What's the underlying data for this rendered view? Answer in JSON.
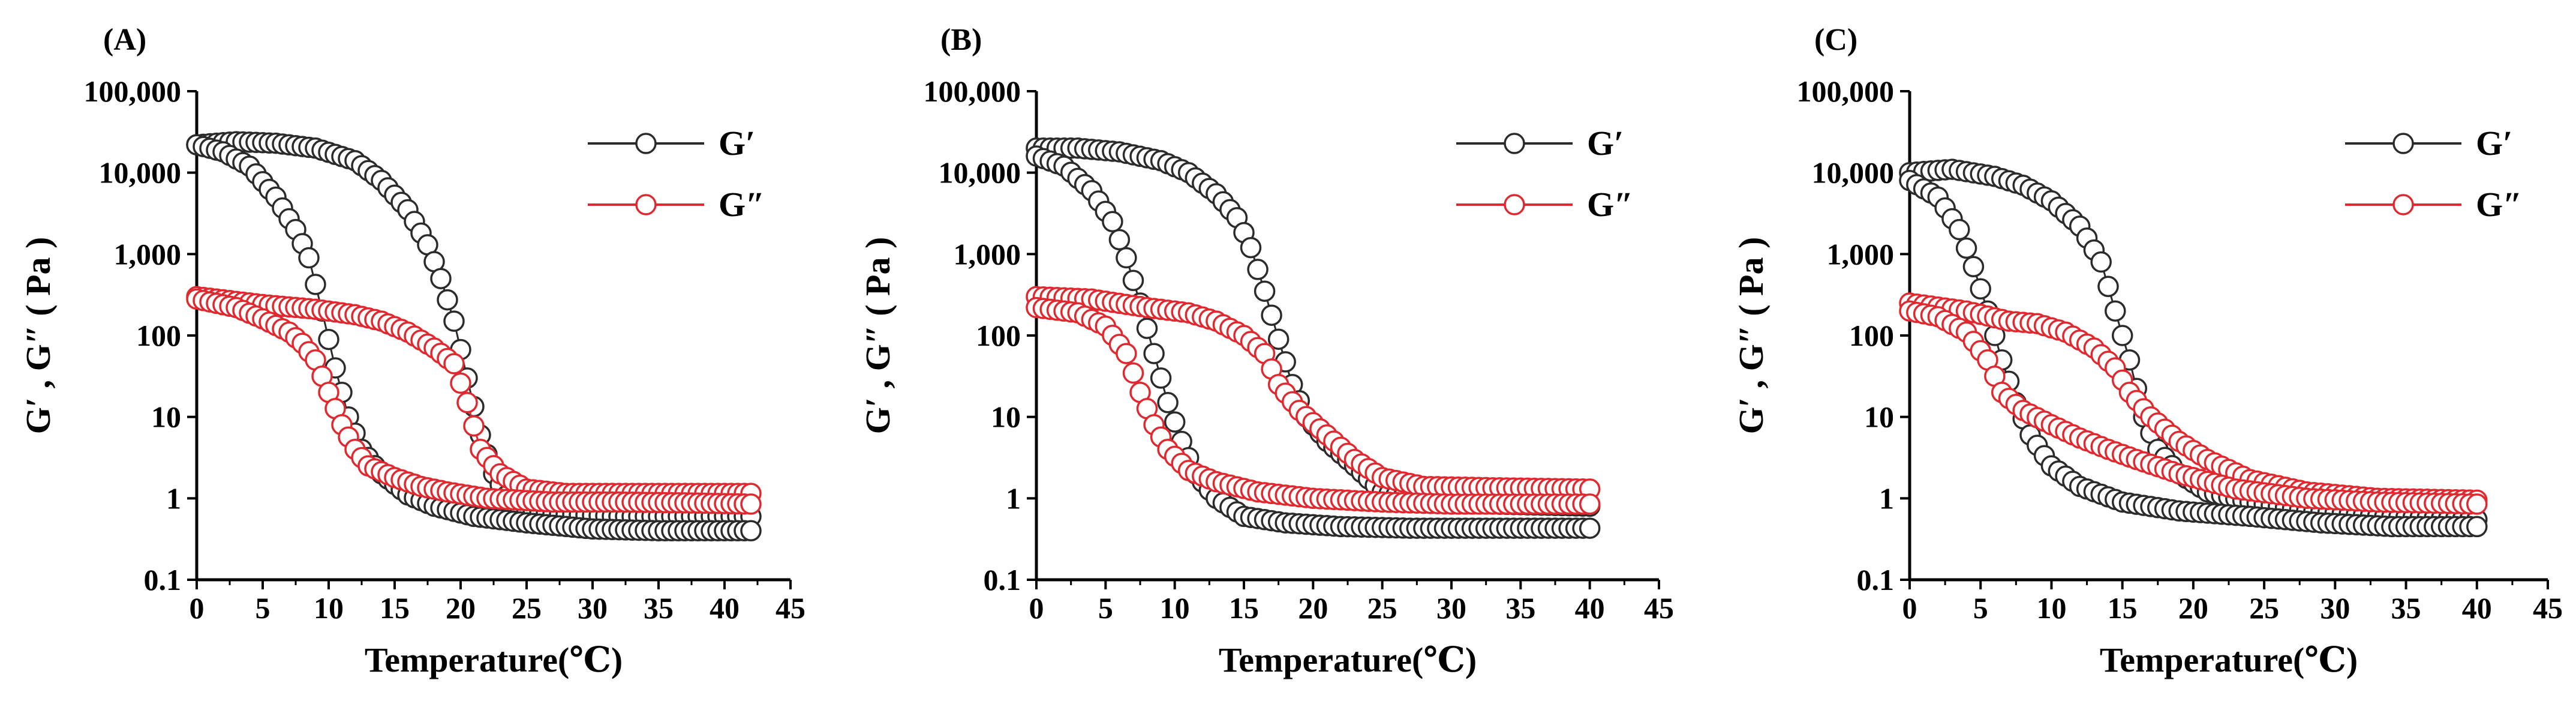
{
  "colors": {
    "gprime": "#2b2b2b",
    "gdouble": "#e0282f",
    "axis": "#000000"
  },
  "chart_data": [
    {
      "panel": "(A)",
      "type": "scatter",
      "yscale": "log",
      "xlabel": "Temperature(℃)",
      "ylabel": "G′ ,  G″ ( Pa )",
      "xlim": [
        0,
        45
      ],
      "ylim": [
        0.1,
        100000
      ],
      "xticks": [
        0,
        5,
        10,
        15,
        20,
        25,
        30,
        35,
        40,
        45
      ],
      "xtick_labels": [
        "0",
        "5",
        "10",
        "15",
        "20",
        "25",
        "30",
        "35",
        "40",
        "45"
      ],
      "yticks": [
        0.1,
        1,
        10,
        100,
        1000,
        10000,
        100000
      ],
      "ytick_labels": [
        "0.1",
        "1",
        "10",
        "100",
        "1,000",
        "10,000",
        "100,000"
      ],
      "legend": {
        "position": "top-right",
        "entries": [
          "G′",
          "G″"
        ]
      },
      "series": [
        {
          "name": "G′",
          "color": "#2b2b2b",
          "heating_x_range": [
            0,
            42
          ],
          "heating_points": [
            [
              0,
              22000
            ],
            [
              3,
              24000
            ],
            [
              6,
              23000
            ],
            [
              9,
              20000
            ],
            [
              12,
              14000
            ],
            [
              14,
              8000
            ],
            [
              16,
              3500
            ],
            [
              17.5,
              1300
            ],
            [
              18.5,
              500
            ],
            [
              19.5,
              150
            ],
            [
              20.5,
              30
            ],
            [
              21.5,
              6
            ],
            [
              22.5,
              2
            ],
            [
              24,
              0.8
            ],
            [
              27,
              0.65
            ],
            [
              32,
              0.6
            ],
            [
              37,
              0.6
            ],
            [
              42,
              0.6
            ]
          ],
          "cooling_x_range": [
            0,
            42
          ],
          "cooling_points": [
            [
              0,
              22000
            ],
            [
              2,
              18000
            ],
            [
              4,
              12000
            ],
            [
              6,
              5000
            ],
            [
              7.5,
              2000
            ],
            [
              8.5,
              900
            ],
            [
              9.5,
              200
            ],
            [
              10.5,
              40
            ],
            [
              11.5,
              10
            ],
            [
              12.5,
              4
            ],
            [
              14,
              2
            ],
            [
              16,
              1.1
            ],
            [
              18,
              0.8
            ],
            [
              21,
              0.6
            ],
            [
              25,
              0.5
            ],
            [
              30,
              0.42
            ],
            [
              35,
              0.4
            ],
            [
              42,
              0.4
            ]
          ]
        },
        {
          "name": "G″",
          "color": "#e0282f",
          "heating_x_range": [
            0,
            42
          ],
          "heating_points": [
            [
              0,
              300
            ],
            [
              5,
              240
            ],
            [
              9,
              210
            ],
            [
              12,
              180
            ],
            [
              14,
              150
            ],
            [
              16,
              110
            ],
            [
              18,
              70
            ],
            [
              19.5,
              45
            ],
            [
              20.5,
              15
            ],
            [
              21.5,
              4
            ],
            [
              23,
              2
            ],
            [
              25,
              1.3
            ],
            [
              28,
              1.15
            ],
            [
              33,
              1.15
            ],
            [
              38,
              1.15
            ],
            [
              42,
              1.15
            ]
          ],
          "cooling_x_range": [
            0,
            42
          ],
          "cooling_points": [
            [
              0,
              280
            ],
            [
              3,
              220
            ],
            [
              5,
              160
            ],
            [
              7,
              110
            ],
            [
              8,
              80
            ],
            [
              9,
              50
            ],
            [
              10,
              20
            ],
            [
              11,
              8
            ],
            [
              12,
              4
            ],
            [
              13,
              2.5
            ],
            [
              15,
              1.8
            ],
            [
              17,
              1.4
            ],
            [
              19,
              1.2
            ],
            [
              22,
              1.0
            ],
            [
              27,
              0.9
            ],
            [
              32,
              0.9
            ],
            [
              37,
              0.88
            ],
            [
              42,
              0.85
            ]
          ]
        }
      ]
    },
    {
      "panel": "(B)",
      "type": "scatter",
      "yscale": "log",
      "xlabel": "Temperature(℃)",
      "ylabel": "G′ ,  G″ ( Pa )",
      "xlim": [
        0,
        45
      ],
      "ylim": [
        0.1,
        100000
      ],
      "xticks": [
        0,
        5,
        10,
        15,
        20,
        25,
        30,
        35,
        40,
        45
      ],
      "xtick_labels": [
        "0",
        "5",
        "10",
        "15",
        "20",
        "25",
        "30",
        "35",
        "40",
        "45"
      ],
      "yticks": [
        0.1,
        1,
        10,
        100,
        1000,
        10000,
        100000
      ],
      "ytick_labels": [
        "0.1",
        "1",
        "10",
        "100",
        "1,000",
        "10,000",
        "100,000"
      ],
      "legend": {
        "position": "top-right",
        "entries": [
          "G′",
          "G″"
        ]
      },
      "series": [
        {
          "name": "G′",
          "color": "#2b2b2b",
          "heating_x_range": [
            0,
            40
          ],
          "heating_points": [
            [
              0,
              20000
            ],
            [
              3,
              20000
            ],
            [
              6,
              18000
            ],
            [
              9,
              14000
            ],
            [
              11,
              10000
            ],
            [
              13,
              5500
            ],
            [
              14.5,
              2800
            ],
            [
              15.5,
              1200
            ],
            [
              16.5,
              350
            ],
            [
              17.5,
              90
            ],
            [
              18.5,
              25
            ],
            [
              19.5,
              10
            ],
            [
              21,
              5
            ],
            [
              23,
              2.5
            ],
            [
              25,
              1.2
            ],
            [
              28,
              0.9
            ],
            [
              33,
              0.85
            ],
            [
              40,
              0.8
            ]
          ],
          "cooling_x_range": [
            0,
            40
          ],
          "cooling_points": [
            [
              0,
              16000
            ],
            [
              2,
              12000
            ],
            [
              4,
              6000
            ],
            [
              5.5,
              2500
            ],
            [
              6.5,
              900
            ],
            [
              7.5,
              250
            ],
            [
              8.5,
              60
            ],
            [
              9.5,
              15
            ],
            [
              10.5,
              5
            ],
            [
              11.5,
              2
            ],
            [
              13,
              1
            ],
            [
              15,
              0.6
            ],
            [
              18,
              0.5
            ],
            [
              22,
              0.45
            ],
            [
              27,
              0.43
            ],
            [
              33,
              0.43
            ],
            [
              40,
              0.43
            ]
          ]
        },
        {
          "name": "G″",
          "color": "#e0282f",
          "heating_x_range": [
            0,
            40
          ],
          "heating_points": [
            [
              0,
              300
            ],
            [
              4,
              280
            ],
            [
              8,
              220
            ],
            [
              11,
              190
            ],
            [
              13,
              150
            ],
            [
              15,
              100
            ],
            [
              16.5,
              60
            ],
            [
              17.5,
              25
            ],
            [
              19,
              12
            ],
            [
              21,
              6
            ],
            [
              23,
              3
            ],
            [
              25,
              1.8
            ],
            [
              28,
              1.4
            ],
            [
              33,
              1.35
            ],
            [
              40,
              1.3
            ]
          ],
          "cooling_x_range": [
            0,
            40
          ],
          "cooling_points": [
            [
              0,
              220
            ],
            [
              3,
              190
            ],
            [
              5,
              130
            ],
            [
              6.5,
              60
            ],
            [
              7.5,
              20
            ],
            [
              8.5,
              8
            ],
            [
              9.5,
              4
            ],
            [
              11,
              2.2
            ],
            [
              13,
              1.6
            ],
            [
              16,
              1.2
            ],
            [
              20,
              1.0
            ],
            [
              25,
              0.9
            ],
            [
              30,
              0.85
            ],
            [
              35,
              0.85
            ],
            [
              40,
              0.85
            ]
          ]
        }
      ]
    },
    {
      "panel": "(C)",
      "type": "scatter",
      "yscale": "log",
      "xlabel": "Temperature(℃)",
      "ylabel": "G′ ,  G″ ( Pa )",
      "xlim": [
        0,
        45
      ],
      "ylim": [
        0.1,
        100000
      ],
      "xticks": [
        0,
        5,
        10,
        15,
        20,
        25,
        30,
        35,
        40,
        45
      ],
      "xtick_labels": [
        "0",
        "5",
        "10",
        "15",
        "20",
        "25",
        "30",
        "35",
        "40",
        "45"
      ],
      "yticks": [
        0.1,
        1,
        10,
        100,
        1000,
        10000,
        100000
      ],
      "ytick_labels": [
        "0.1",
        "1",
        "10",
        "100",
        "1,000",
        "10,000",
        "100,000"
      ],
      "legend": {
        "position": "top-right",
        "entries": [
          "G′",
          "G″"
        ]
      },
      "series": [
        {
          "name": "G′",
          "color": "#2b2b2b",
          "heating_x_range": [
            0,
            40
          ],
          "heating_points": [
            [
              0,
              10000
            ],
            [
              3,
              11000
            ],
            [
              6,
              9000
            ],
            [
              8,
              7000
            ],
            [
              10,
              4500
            ],
            [
              12,
              2200
            ],
            [
              13.5,
              800
            ],
            [
              14.5,
              200
            ],
            [
              15.5,
              50
            ],
            [
              16.5,
              10
            ],
            [
              17.5,
              4
            ],
            [
              19,
              2
            ],
            [
              21,
              1.2
            ],
            [
              24,
              0.9
            ],
            [
              28,
              0.7
            ],
            [
              33,
              0.6
            ],
            [
              40,
              0.55
            ]
          ],
          "cooling_x_range": [
            0,
            40
          ],
          "cooling_points": [
            [
              0,
              8000
            ],
            [
              2,
              5000
            ],
            [
              3.5,
              2000
            ],
            [
              4.5,
              700
            ],
            [
              5.5,
              200
            ],
            [
              6.5,
              50
            ],
            [
              7.5,
              15
            ],
            [
              8.5,
              6
            ],
            [
              10,
              2.5
            ],
            [
              12,
              1.4
            ],
            [
              15,
              0.9
            ],
            [
              19,
              0.7
            ],
            [
              24,
              0.6
            ],
            [
              29,
              0.5
            ],
            [
              34,
              0.45
            ],
            [
              40,
              0.45
            ]
          ]
        },
        {
          "name": "G″",
          "color": "#e0282f",
          "heating_x_range": [
            0,
            40
          ],
          "heating_points": [
            [
              0,
              250
            ],
            [
              4,
              200
            ],
            [
              7,
              150
            ],
            [
              9,
              140
            ],
            [
              11,
              110
            ],
            [
              13,
              70
            ],
            [
              14.5,
              40
            ],
            [
              15.5,
              20
            ],
            [
              17,
              10
            ],
            [
              19,
              5
            ],
            [
              21,
              3
            ],
            [
              24,
              1.7
            ],
            [
              28,
              1.2
            ],
            [
              33,
              1.0
            ],
            [
              40,
              0.95
            ]
          ],
          "cooling_x_range": [
            0,
            40
          ],
          "cooling_points": [
            [
              0,
              200
            ],
            [
              2,
              170
            ],
            [
              4,
              110
            ],
            [
              5.5,
              50
            ],
            [
              6.5,
              20
            ],
            [
              8,
              12
            ],
            [
              10,
              8
            ],
            [
              12,
              5.5
            ],
            [
              14,
              4
            ],
            [
              16,
              3
            ],
            [
              19,
              2
            ],
            [
              23,
              1.3
            ],
            [
              28,
              1.0
            ],
            [
              33,
              0.9
            ],
            [
              40,
              0.85
            ]
          ]
        }
      ]
    }
  ]
}
